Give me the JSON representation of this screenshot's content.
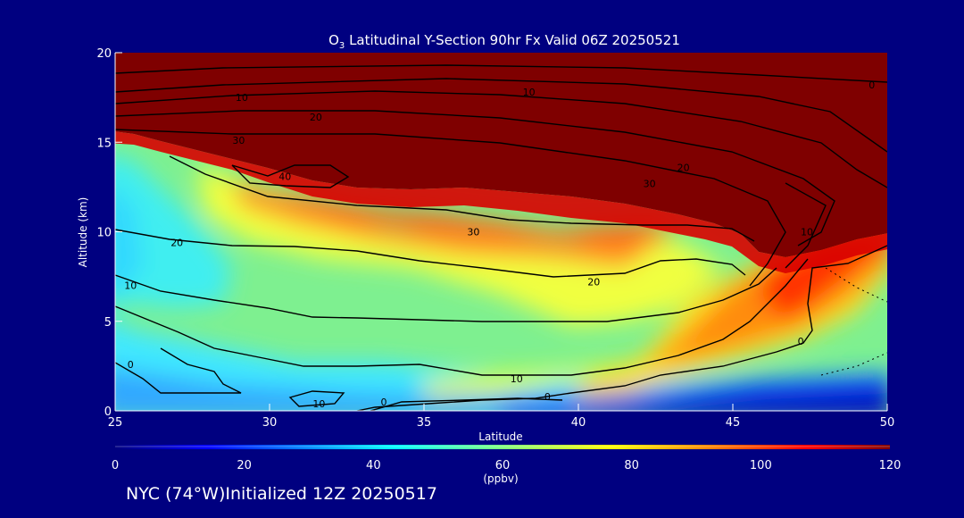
{
  "chart_data": {
    "type": "heatmap",
    "title_species": "O",
    "title_sub": "3",
    "title_rest": " Latitudinal Y-Section 90hr  Fx Valid 06Z 20250521",
    "xlabel": "Latitude",
    "ylabel": "Altitude (km)",
    "xlim": [
      25,
      50
    ],
    "ylim": [
      0,
      20
    ],
    "xticks": [
      "25",
      "30",
      "35",
      "40",
      "45",
      "50"
    ],
    "yticks": [
      "0",
      "5",
      "10",
      "15",
      "20"
    ],
    "grid": false,
    "colorbar": {
      "min": 0,
      "max": 120,
      "ticks": [
        "0",
        "20",
        "40",
        "60",
        "80",
        "100",
        "120"
      ],
      "unit": "(ppbv)"
    },
    "contour_levels": [
      0,
      10,
      20,
      30,
      40
    ],
    "contour_labels": [
      {
        "text": "10",
        "lat": 29.1,
        "alt": 17.5
      },
      {
        "text": "10",
        "lat": 38.4,
        "alt": 17.8
      },
      {
        "text": "0",
        "lat": 49.5,
        "alt": 18.2
      },
      {
        "text": "20",
        "lat": 31.5,
        "alt": 16.4
      },
      {
        "text": "30",
        "lat": 29.0,
        "alt": 15.1
      },
      {
        "text": "40",
        "lat": 30.5,
        "alt": 13.1
      },
      {
        "text": "20",
        "lat": 43.4,
        "alt": 13.6
      },
      {
        "text": "30",
        "lat": 42.3,
        "alt": 12.7
      },
      {
        "text": "30",
        "lat": 36.6,
        "alt": 10.0
      },
      {
        "text": "20",
        "lat": 27.0,
        "alt": 9.4
      },
      {
        "text": "10",
        "lat": 25.5,
        "alt": 7.0
      },
      {
        "text": "20",
        "lat": 40.5,
        "alt": 7.2
      },
      {
        "text": "10",
        "lat": 47.4,
        "alt": 10.0
      },
      {
        "text": "0",
        "lat": 47.2,
        "alt": 3.9
      },
      {
        "text": "0",
        "lat": 25.5,
        "alt": 2.6
      },
      {
        "text": "10",
        "lat": 38.0,
        "alt": 1.8
      },
      {
        "text": "0",
        "lat": 39.0,
        "alt": 0.8
      },
      {
        "text": "10",
        "lat": 31.6,
        "alt": 0.4
      },
      {
        "text": "0",
        "lat": 33.7,
        "alt": 0.5
      }
    ]
  },
  "footer": {
    "text": "NYC (74°W)Initialized 12Z 20250517"
  }
}
